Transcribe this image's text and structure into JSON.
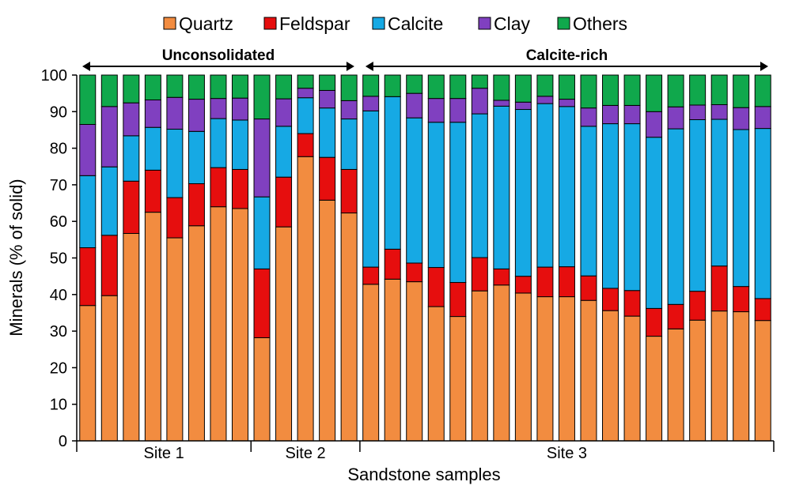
{
  "colors": {
    "Quartz": "#F28C40",
    "Feldspar": "#E60E0E",
    "Calcite": "#16A9E4",
    "Clay": "#8040C0",
    "Others": "#10A84C"
  },
  "chart_data": {
    "type": "bar",
    "stacked": true,
    "title": "",
    "xlabel": "Sandstone samples",
    "ylabel": "Minerals (% of solid)",
    "ylim": [
      0,
      100
    ],
    "yticks": [
      0,
      10,
      20,
      30,
      40,
      50,
      60,
      70,
      80,
      90,
      100
    ],
    "grid": false,
    "legend_position": "top",
    "site_labels": [
      {
        "label": "Site 1",
        "start": 0,
        "end": 7
      },
      {
        "label": "Site 2",
        "start": 8,
        "end": 12
      },
      {
        "label": "Site 3",
        "start": 13,
        "end": 31
      }
    ],
    "group_labels": [
      {
        "label": "Unconsolidated",
        "start": 0,
        "end": 12
      },
      {
        "label": "Calcite-rich",
        "start": 13,
        "end": 31
      }
    ],
    "series": [
      {
        "name": "Quartz",
        "values": [
          37,
          39.7,
          56.7,
          62.5,
          55.5,
          58.8,
          64,
          63.5,
          28.2,
          58.5,
          77.7,
          65.8,
          62.3,
          42.8,
          44.2,
          43.5,
          36.7,
          34,
          41,
          42.6,
          40.4,
          39.4,
          39.4,
          38.4,
          35.6,
          34.1,
          28.6,
          30.6,
          33,
          35.5,
          35.3,
          32.9
        ]
      },
      {
        "name": "Feldspar",
        "values": [
          15.8,
          16.5,
          14.3,
          11.5,
          11,
          11.5,
          10.7,
          10.7,
          18.8,
          13.6,
          6.3,
          11.7,
          11.9,
          4.7,
          8.2,
          5.1,
          10.7,
          9.3,
          9.1,
          4.4,
          4.6,
          8.1,
          8.2,
          6.7,
          6.1,
          7,
          7.6,
          6.7,
          7.9,
          12.3,
          6.9,
          6
        ]
      },
      {
        "name": "Calcite",
        "values": [
          19.7,
          18.7,
          12.4,
          11.7,
          18.7,
          14.3,
          13.4,
          13.5,
          19.7,
          13.9,
          9.8,
          13.5,
          13.8,
          42.7,
          41.7,
          39.7,
          39.7,
          43.8,
          39.3,
          44.5,
          45.6,
          44.7,
          43.8,
          40.9,
          45,
          45.6,
          46.8,
          48,
          46.9,
          40.1,
          42.9,
          46.5
        ]
      },
      {
        "name": "Clay",
        "values": [
          14,
          16.5,
          9,
          7.5,
          8.7,
          8.8,
          5.5,
          6,
          21.3,
          7.5,
          2.6,
          4.8,
          5,
          4,
          0,
          6.7,
          6.5,
          6.5,
          7,
          1.6,
          2,
          2,
          2,
          5,
          5,
          5,
          7,
          6,
          4,
          4,
          6,
          6
        ]
      },
      {
        "name": "Others",
        "values": [
          13.5,
          8.6,
          7.6,
          6.8,
          6.1,
          6.6,
          6.4,
          6.3,
          12,
          6.5,
          3.6,
          4.2,
          7,
          5.8,
          5.9,
          5,
          6.4,
          6.4,
          3.6,
          6.9,
          7.4,
          5.8,
          6.6,
          9,
          8.3,
          8.3,
          10,
          8.7,
          8.2,
          8.1,
          8.9,
          8.6
        ]
      }
    ]
  }
}
